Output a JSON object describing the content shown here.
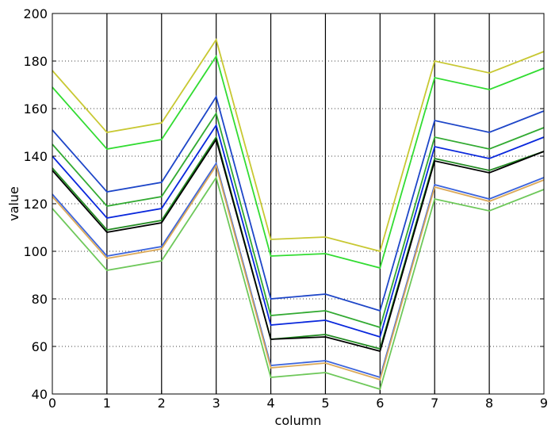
{
  "chart_data": {
    "type": "line",
    "title": "",
    "xlabel": "column",
    "ylabel": "value",
    "xlim": [
      0,
      9
    ],
    "ylim": [
      40,
      200
    ],
    "x": [
      0,
      1,
      2,
      3,
      4,
      5,
      6,
      7,
      8,
      9
    ],
    "x_ticks": [
      "0",
      "1",
      "2",
      "3",
      "4",
      "5",
      "6",
      "7",
      "8",
      "9"
    ],
    "y_ticks": [
      40,
      60,
      80,
      100,
      120,
      140,
      160,
      180,
      200
    ],
    "grid": "horizontal dotted",
    "vertical_lines_at_each_x": true,
    "legend": "none",
    "series": [
      {
        "color": "#c8c832",
        "values": [
          176,
          150,
          154,
          189,
          105,
          106,
          100,
          180,
          175,
          184
        ]
      },
      {
        "color": "#32dc32",
        "values": [
          169,
          143,
          147,
          182,
          98,
          99,
          93,
          173,
          168,
          177
        ]
      },
      {
        "color": "#1e46c8",
        "values": [
          151,
          125,
          129,
          165,
          80,
          82,
          75,
          155,
          150,
          159
        ]
      },
      {
        "color": "#32aa32",
        "values": [
          145,
          119,
          123,
          158,
          73,
          75,
          68,
          148,
          143,
          152
        ]
      },
      {
        "color": "#0a28dc",
        "values": [
          140,
          114,
          118,
          153,
          69,
          71,
          64,
          144,
          139,
          148
        ]
      },
      {
        "color": "#228b22",
        "values": [
          135,
          109,
          113,
          148,
          63,
          65,
          59,
          139,
          134,
          142
        ]
      },
      {
        "color": "#000000",
        "values": [
          134,
          108,
          112,
          147,
          63,
          64,
          58,
          138,
          133,
          142
        ]
      },
      {
        "color": "#3c64dc",
        "values": [
          124,
          98,
          102,
          137,
          52,
          54,
          47,
          128,
          122,
          131
        ]
      },
      {
        "color": "#dcaa5a",
        "values": [
          123,
          97,
          101,
          136,
          51,
          53,
          46,
          127,
          121,
          130
        ]
      },
      {
        "color": "#6ec85a",
        "values": [
          118,
          92,
          96,
          131,
          47,
          49,
          42,
          122,
          117,
          126
        ]
      }
    ]
  }
}
